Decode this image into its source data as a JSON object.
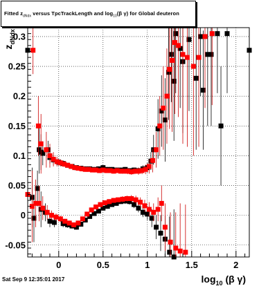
{
  "title": {
    "prefix": "Fitted z",
    "sub1": "dNdx",
    "mid": " versus TpcTrackLength and log",
    "sub2": "10",
    "suffix": "(β γ) for Global deuteron"
  },
  "timestamp": "Sat Sep  9 12:35:01 2017",
  "chart_data": {
    "type": "scatter",
    "title": "Fitted z_dNdx versus TpcTrackLength and log10(β γ) for Global deuteron",
    "xlabel": "log10 (β γ)",
    "ylabel": "z_dNdx",
    "xlim": [
      -0.35,
      2.15
    ],
    "ylim": [
      -0.07,
      0.315
    ],
    "x_ticks": [
      0,
      0.5,
      1,
      1.5,
      2
    ],
    "x_tick_labels": [
      "0",
      "0.5",
      "1",
      "1.5",
      "2"
    ],
    "y_ticks": [
      -0.05,
      0,
      0.05,
      0.1,
      0.15,
      0.2,
      0.25,
      0.3
    ],
    "y_tick_labels": [
      "-0.05",
      "0",
      "0.05",
      "0.1",
      "0.15",
      "0.2",
      "0.25",
      "0.3"
    ],
    "grid": true,
    "colors": {
      "black_series": "#000000",
      "red_series": "#ff0000",
      "red_errbar": "#cc0000"
    },
    "series": [
      {
        "marker": "square",
        "color": "#000000",
        "points": [
          {
            "x": -0.36,
            "y": 0.277,
            "e": 0.03
          },
          {
            "x": -0.22,
            "y": 0.11,
            "e": 0.04
          },
          {
            "x": -0.2,
            "y": 0.106,
            "e": 0.03
          },
          {
            "x": -0.18,
            "y": 0.104,
            "e": 0.02
          },
          {
            "x": -0.12,
            "y": 0.11,
            "e": 0.015
          },
          {
            "x": -0.1,
            "y": 0.097,
            "e": 0.01
          },
          {
            "x": -0.06,
            "y": 0.093,
            "e": 0.008
          },
          {
            "x": 0.0,
            "y": 0.089,
            "e": 0.006
          },
          {
            "x": 0.05,
            "y": 0.087,
            "e": 0.005
          },
          {
            "x": 0.1,
            "y": 0.084,
            "e": 0.004
          },
          {
            "x": 0.15,
            "y": 0.082,
            "e": 0.004
          },
          {
            "x": 0.2,
            "y": 0.08,
            "e": 0.004
          },
          {
            "x": 0.25,
            "y": 0.079,
            "e": 0.004
          },
          {
            "x": 0.3,
            "y": 0.078,
            "e": 0.004
          },
          {
            "x": 0.35,
            "y": 0.078,
            "e": 0.004
          },
          {
            "x": 0.4,
            "y": 0.077,
            "e": 0.004
          },
          {
            "x": 0.45,
            "y": 0.078,
            "e": 0.004
          },
          {
            "x": 0.5,
            "y": 0.08,
            "e": 0.004
          },
          {
            "x": 0.55,
            "y": 0.077,
            "e": 0.004
          },
          {
            "x": 0.6,
            "y": 0.077,
            "e": 0.004
          },
          {
            "x": 0.65,
            "y": 0.076,
            "e": 0.004
          },
          {
            "x": 0.7,
            "y": 0.076,
            "e": 0.004
          },
          {
            "x": 0.75,
            "y": 0.077,
            "e": 0.004
          },
          {
            "x": 0.8,
            "y": 0.075,
            "e": 0.004
          },
          {
            "x": 0.85,
            "y": 0.076,
            "e": 0.004
          },
          {
            "x": 0.9,
            "y": 0.075,
            "e": 0.005
          },
          {
            "x": 0.95,
            "y": 0.078,
            "e": 0.006
          },
          {
            "x": 1.0,
            "y": 0.08,
            "e": 0.008
          },
          {
            "x": 1.04,
            "y": 0.091,
            "e": 0.015
          },
          {
            "x": 1.07,
            "y": 0.11,
            "e": 0.025
          },
          {
            "x": 1.12,
            "y": 0.145,
            "e": 0.05
          },
          {
            "x": 1.16,
            "y": 0.175,
            "e": 0.06
          },
          {
            "x": 1.2,
            "y": 0.16,
            "e": 0.07
          },
          {
            "x": 1.24,
            "y": 0.24,
            "e": 0.08
          },
          {
            "x": 1.27,
            "y": 0.27,
            "e": 0.08
          },
          {
            "x": 1.3,
            "y": 0.225,
            "e": 0.1
          },
          {
            "x": 1.32,
            "y": 0.305,
            "e": 0.1
          },
          {
            "x": 1.37,
            "y": 0.28,
            "e": 0.1
          },
          {
            "x": 1.4,
            "y": 0.258,
            "e": 0.12
          },
          {
            "x": 1.47,
            "y": 0.295,
            "e": 0.12
          },
          {
            "x": 1.55,
            "y": 0.23,
            "e": 0.12
          },
          {
            "x": 1.6,
            "y": 0.3,
            "e": 0.1
          },
          {
            "x": 1.63,
            "y": 0.21,
            "e": 0.1
          },
          {
            "x": 1.68,
            "y": 0.27,
            "e": 0.12
          },
          {
            "x": 1.72,
            "y": 0.27,
            "e": 0.12
          },
          {
            "x": 1.79,
            "y": 0.305,
            "e": 0.1
          },
          {
            "x": 1.83,
            "y": 0.15,
            "e": 0.1
          },
          {
            "x": 1.9,
            "y": 0.305,
            "e": 0.1
          },
          {
            "x": 2.15,
            "y": 0.277,
            "e": 0.05
          },
          {
            "x": -0.3,
            "y": 0.03,
            "e": 0.05
          },
          {
            "x": -0.28,
            "y": -0.005,
            "e": 0.04
          },
          {
            "x": -0.24,
            "y": 0.045,
            "e": 0.03
          },
          {
            "x": -0.2,
            "y": 0.01,
            "e": 0.03
          },
          {
            "x": -0.15,
            "y": 0.005,
            "e": 0.015
          },
          {
            "x": -0.1,
            "y": -0.01,
            "e": 0.01
          },
          {
            "x": -0.05,
            "y": -0.012,
            "e": 0.008
          },
          {
            "x": 0.05,
            "y": -0.014,
            "e": 0.006
          },
          {
            "x": 0.1,
            "y": -0.016,
            "e": 0.005
          },
          {
            "x": 0.15,
            "y": -0.018,
            "e": 0.004
          },
          {
            "x": 0.2,
            "y": -0.02,
            "e": 0.004
          },
          {
            "x": 0.25,
            "y": -0.015,
            "e": 0.004
          },
          {
            "x": 0.3,
            "y": -0.008,
            "e": 0.004
          },
          {
            "x": 0.35,
            "y": -0.002,
            "e": 0.004
          },
          {
            "x": 0.4,
            "y": 0.003,
            "e": 0.004
          },
          {
            "x": 0.45,
            "y": 0.007,
            "e": 0.004
          },
          {
            "x": 0.5,
            "y": 0.012,
            "e": 0.004
          },
          {
            "x": 0.55,
            "y": 0.015,
            "e": 0.004
          },
          {
            "x": 0.6,
            "y": 0.018,
            "e": 0.004
          },
          {
            "x": 0.65,
            "y": 0.02,
            "e": 0.004
          },
          {
            "x": 0.7,
            "y": 0.023,
            "e": 0.004
          },
          {
            "x": 0.75,
            "y": 0.024,
            "e": 0.005
          },
          {
            "x": 0.8,
            "y": 0.023,
            "e": 0.005
          },
          {
            "x": 0.85,
            "y": 0.018,
            "e": 0.006
          },
          {
            "x": 0.9,
            "y": 0.012,
            "e": 0.007
          },
          {
            "x": 0.95,
            "y": 0.005,
            "e": 0.008
          },
          {
            "x": 1.0,
            "y": 0.002,
            "e": 0.01
          },
          {
            "x": 1.05,
            "y": -0.005,
            "e": 0.015
          },
          {
            "x": 1.1,
            "y": -0.02,
            "e": 0.02
          },
          {
            "x": 1.15,
            "y": -0.03,
            "e": 0.03
          },
          {
            "x": 1.2,
            "y": -0.04,
            "e": 0.04
          },
          {
            "x": 1.25,
            "y": -0.062,
            "e": 0.06
          },
          {
            "x": 1.3,
            "y": -0.07,
            "e": 0.08
          }
        ]
      },
      {
        "marker": "square",
        "color": "#ff0000",
        "points": [
          {
            "x": -0.29,
            "y": 0.277,
            "e": 0.04
          },
          {
            "x": -0.23,
            "y": 0.15,
            "e": 0.05
          },
          {
            "x": -0.2,
            "y": 0.12,
            "e": 0.05
          },
          {
            "x": -0.14,
            "y": 0.11,
            "e": 0.03
          },
          {
            "x": -0.1,
            "y": 0.1,
            "e": 0.02
          },
          {
            "x": -0.06,
            "y": 0.094,
            "e": 0.012
          },
          {
            "x": -0.02,
            "y": 0.09,
            "e": 0.008
          },
          {
            "x": 0.02,
            "y": 0.088,
            "e": 0.006
          },
          {
            "x": 0.06,
            "y": 0.086,
            "e": 0.005
          },
          {
            "x": 0.1,
            "y": 0.084,
            "e": 0.004
          },
          {
            "x": 0.14,
            "y": 0.082,
            "e": 0.004
          },
          {
            "x": 0.18,
            "y": 0.08,
            "e": 0.004
          },
          {
            "x": 0.22,
            "y": 0.079,
            "e": 0.004
          },
          {
            "x": 0.26,
            "y": 0.078,
            "e": 0.004
          },
          {
            "x": 0.3,
            "y": 0.077,
            "e": 0.004
          },
          {
            "x": 0.34,
            "y": 0.077,
            "e": 0.004
          },
          {
            "x": 0.38,
            "y": 0.076,
            "e": 0.004
          },
          {
            "x": 0.42,
            "y": 0.076,
            "e": 0.004
          },
          {
            "x": 0.46,
            "y": 0.075,
            "e": 0.004
          },
          {
            "x": 0.5,
            "y": 0.076,
            "e": 0.004
          },
          {
            "x": 0.54,
            "y": 0.075,
            "e": 0.004
          },
          {
            "x": 0.58,
            "y": 0.075,
            "e": 0.004
          },
          {
            "x": 0.62,
            "y": 0.074,
            "e": 0.004
          },
          {
            "x": 0.66,
            "y": 0.075,
            "e": 0.004
          },
          {
            "x": 0.7,
            "y": 0.074,
            "e": 0.004
          },
          {
            "x": 0.74,
            "y": 0.074,
            "e": 0.004
          },
          {
            "x": 0.78,
            "y": 0.074,
            "e": 0.005
          },
          {
            "x": 0.82,
            "y": 0.073,
            "e": 0.005
          },
          {
            "x": 0.86,
            "y": 0.074,
            "e": 0.005
          },
          {
            "x": 0.9,
            "y": 0.074,
            "e": 0.006
          },
          {
            "x": 0.94,
            "y": 0.075,
            "e": 0.006
          },
          {
            "x": 0.98,
            "y": 0.077,
            "e": 0.008
          },
          {
            "x": 1.02,
            "y": 0.082,
            "e": 0.012
          },
          {
            "x": 1.06,
            "y": 0.092,
            "e": 0.02
          },
          {
            "x": 1.1,
            "y": 0.11,
            "e": 0.03
          },
          {
            "x": 1.14,
            "y": 0.15,
            "e": 0.05
          },
          {
            "x": 1.18,
            "y": 0.18,
            "e": 0.07
          },
          {
            "x": 1.22,
            "y": 0.2,
            "e": 0.08
          },
          {
            "x": 1.25,
            "y": 0.245,
            "e": 0.1
          },
          {
            "x": 1.28,
            "y": 0.26,
            "e": 0.12
          },
          {
            "x": 1.31,
            "y": 0.29,
            "e": 0.12
          },
          {
            "x": 1.35,
            "y": 0.285,
            "e": 0.12
          },
          {
            "x": 1.4,
            "y": 0.27,
            "e": 0.15
          },
          {
            "x": 1.45,
            "y": 0.265,
            "e": 0.15
          },
          {
            "x": 1.52,
            "y": 0.25,
            "e": 0.15
          },
          {
            "x": 1.58,
            "y": 0.265,
            "e": 0.15
          },
          {
            "x": 1.65,
            "y": 0.3,
            "e": 0.12
          },
          {
            "x": 1.73,
            "y": 0.305,
            "e": 0.12
          },
          {
            "x": -0.36,
            "y": 0.035,
            "e": 0.05
          },
          {
            "x": -0.3,
            "y": 0.015,
            "e": 0.06
          },
          {
            "x": -0.26,
            "y": 0.02,
            "e": 0.04
          },
          {
            "x": -0.22,
            "y": 0.02,
            "e": 0.03
          },
          {
            "x": -0.18,
            "y": 0.012,
            "e": 0.02
          },
          {
            "x": -0.13,
            "y": 0.005,
            "e": 0.012
          },
          {
            "x": -0.08,
            "y": 0.0,
            "e": 0.008
          },
          {
            "x": -0.03,
            "y": -0.003,
            "e": 0.006
          },
          {
            "x": 0.02,
            "y": -0.006,
            "e": 0.005
          },
          {
            "x": 0.07,
            "y": -0.01,
            "e": 0.004
          },
          {
            "x": 0.12,
            "y": -0.013,
            "e": 0.004
          },
          {
            "x": 0.17,
            "y": -0.016,
            "e": 0.004
          },
          {
            "x": 0.22,
            "y": -0.013,
            "e": 0.004
          },
          {
            "x": 0.27,
            "y": -0.006,
            "e": 0.004
          },
          {
            "x": 0.32,
            "y": 0.002,
            "e": 0.004
          },
          {
            "x": 0.37,
            "y": 0.009,
            "e": 0.004
          },
          {
            "x": 0.42,
            "y": 0.014,
            "e": 0.004
          },
          {
            "x": 0.47,
            "y": 0.018,
            "e": 0.004
          },
          {
            "x": 0.52,
            "y": 0.021,
            "e": 0.004
          },
          {
            "x": 0.57,
            "y": 0.023,
            "e": 0.004
          },
          {
            "x": 0.62,
            "y": 0.025,
            "e": 0.004
          },
          {
            "x": 0.67,
            "y": 0.026,
            "e": 0.004
          },
          {
            "x": 0.72,
            "y": 0.027,
            "e": 0.005
          },
          {
            "x": 0.77,
            "y": 0.028,
            "e": 0.005
          },
          {
            "x": 0.82,
            "y": 0.028,
            "e": 0.006
          },
          {
            "x": 0.87,
            "y": 0.026,
            "e": 0.007
          },
          {
            "x": 0.92,
            "y": 0.022,
            "e": 0.008
          },
          {
            "x": 0.97,
            "y": 0.016,
            "e": 0.01
          },
          {
            "x": 1.02,
            "y": 0.01,
            "e": 0.012
          },
          {
            "x": 1.07,
            "y": 0.005,
            "e": 0.015
          },
          {
            "x": 1.12,
            "y": 0.01,
            "e": 0.02
          },
          {
            "x": 1.16,
            "y": 0.02,
            "e": 0.03
          },
          {
            "x": 1.2,
            "y": -0.02,
            "e": 0.04
          },
          {
            "x": 1.26,
            "y": -0.045,
            "e": 0.05
          },
          {
            "x": 1.32,
            "y": -0.055,
            "e": 0.06
          },
          {
            "x": 1.37,
            "y": -0.06,
            "e": 0.08
          },
          {
            "x": 1.43,
            "y": -0.062,
            "e": 0.08
          }
        ]
      }
    ]
  }
}
